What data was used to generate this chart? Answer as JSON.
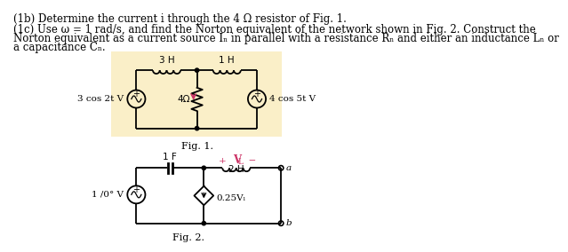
{
  "title_1b": "(1b) Determine the current i through the 4 Ω resistor of Fig. 1.",
  "title_1c_line1": "(1c) Use ω = 1 rad/s, and find the Norton equivalent of the network shown in Fig. 2. Construct the",
  "title_1c_line2": "Norton equivalent as a current source Iₙ in parallel with a resistance Rₙ and either an inductance Lₙ or",
  "title_1c_line3": "a capacitance Cₙ.",
  "bg_color": "#faefc8",
  "fig1_label": "Fig. 1.",
  "fig2_label": "Fig. 2.",
  "source1_label": "3 cos 2t V",
  "source2_label": "4 cos 5t V",
  "source3_label": "1∕̲θ° V",
  "source3_display": "1 /0° V",
  "inductor1_label": "3 H",
  "inductor2_label": "1 H",
  "inductor3_label": "2 H",
  "resistor_label": "4Ω",
  "capacitor_label": "1 F",
  "dep_source_label": "0.25Vₗ",
  "vl_label_plus": "+  V",
  "vl_label_minus": "−",
  "vl_subscript": "L",
  "node_a_label": "a",
  "node_b_label": "b",
  "arrow_color": "#cc3366",
  "vl_color": "#cc3366",
  "text_color": "#1a1a1a",
  "font_size_main": 8.5,
  "font_size_label": 7.5,
  "lw_circuit": 1.3
}
